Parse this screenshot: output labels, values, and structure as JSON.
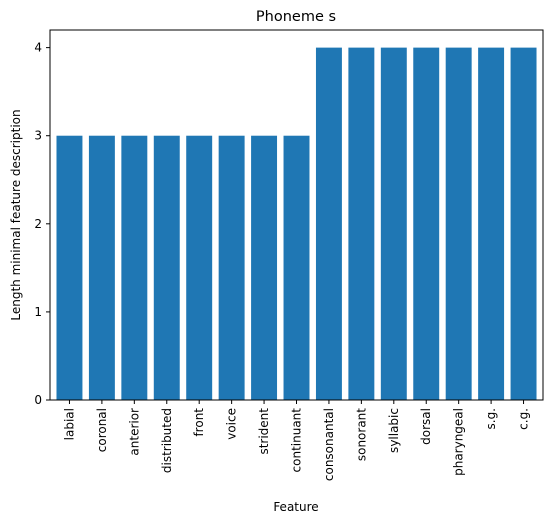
{
  "chart_data": {
    "type": "bar",
    "title": "Phoneme s",
    "xlabel": "Feature",
    "ylabel": "Length minimal feature description",
    "categories": [
      "labial",
      "coronal",
      "anterior",
      "distributed",
      "front",
      "voice",
      "strident",
      "continuant",
      "consonantal",
      "sonorant",
      "syllabic",
      "dorsal",
      "pharyngeal",
      "s.g.",
      "c.g."
    ],
    "values": [
      3,
      3,
      3,
      3,
      3,
      3,
      3,
      3,
      4,
      4,
      4,
      4,
      4,
      4,
      4
    ],
    "yticks": [
      0,
      1,
      2,
      3,
      4
    ],
    "ylim": [
      0,
      4.2
    ],
    "grid": false,
    "bar_color": "#1f77b4"
  }
}
